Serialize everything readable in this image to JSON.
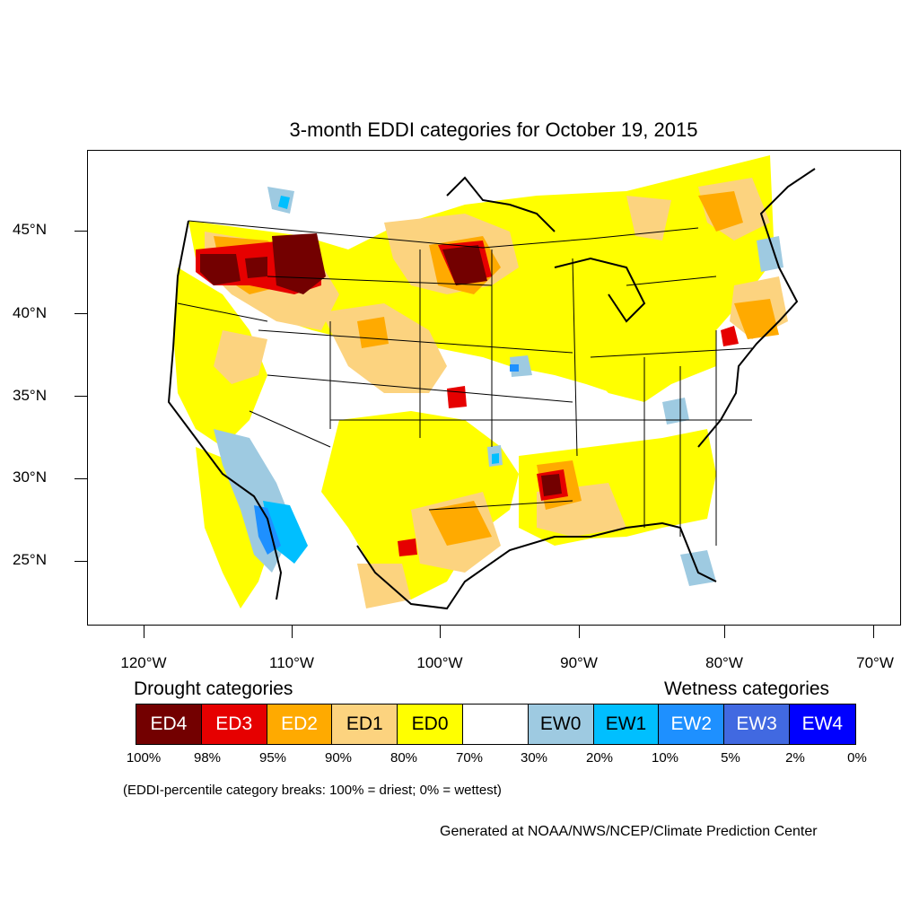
{
  "title": "3-month EDDI categories for October 19, 2015",
  "lat_labels": [
    "45°N",
    "40°N",
    "35°N",
    "30°N",
    "25°N"
  ],
  "lon_labels": [
    "120°W",
    "110°W",
    "100°W",
    "90°W",
    "80°W",
    "70°W"
  ],
  "legend": {
    "drought_heading": "Drought categories",
    "wetness_heading": "Wetness categories",
    "categories": [
      {
        "label": "ED4",
        "color": "#730000"
      },
      {
        "label": "ED3",
        "color": "#e60000"
      },
      {
        "label": "ED2",
        "color": "#ffaa00"
      },
      {
        "label": "ED1",
        "color": "#fcd37f"
      },
      {
        "label": "ED0",
        "color": "#ffff00"
      },
      {
        "label": "",
        "color": "#ffffff"
      },
      {
        "label": "EW0",
        "color": "#9ecae1"
      },
      {
        "label": "EW1",
        "color": "#00bfff"
      },
      {
        "label": "EW2",
        "color": "#1e90ff"
      },
      {
        "label": "EW3",
        "color": "#4169e1"
      },
      {
        "label": "EW4",
        "color": "#0000ff"
      }
    ],
    "breaks": [
      "100%",
      "98%",
      "95%",
      "90%",
      "80%",
      "70%",
      "30%",
      "20%",
      "10%",
      "5%",
      "2%",
      "0%"
    ]
  },
  "note": "(EDDI-percentile category breaks: 100% = driest; 0% = wettest)",
  "credit": "Generated at NOAA/NWS/NCEP/Climate Prediction Center"
}
